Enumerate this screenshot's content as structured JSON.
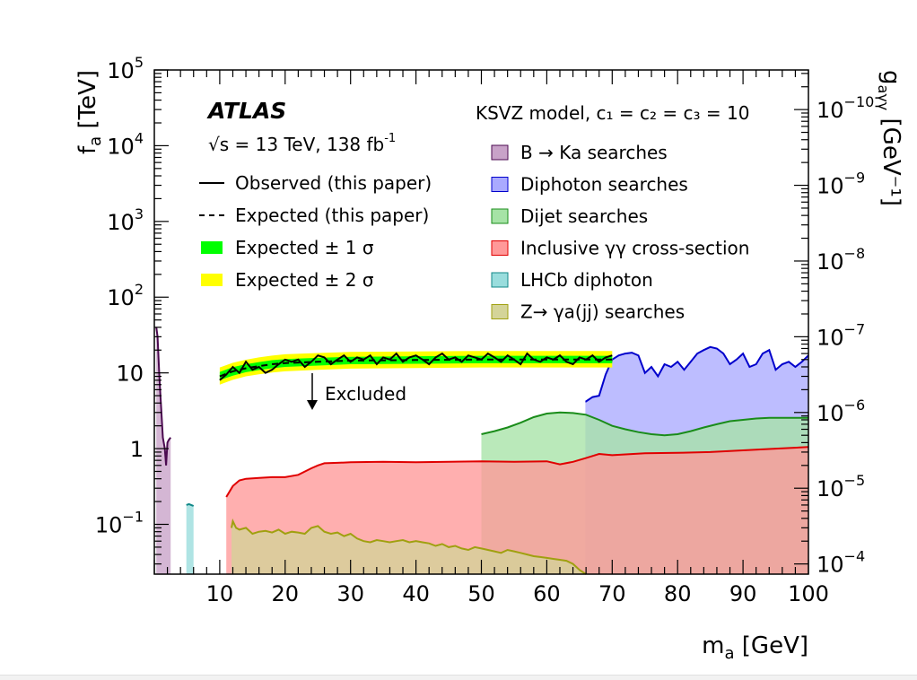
{
  "chart_data": {
    "type": "area",
    "title": "",
    "experiment": "ATLAS",
    "energy_label": "√s = 13 TeV, 138 fb",
    "energy_sup": "-1",
    "model_label": "KSVZ model, c₁ = c₂ = c₃ = 10",
    "xlabel_main": "m",
    "xlabel_sub": "a",
    "xlabel_unit": " [GeV]",
    "ylabel_main": "f",
    "ylabel_sub": "a",
    "ylabel_unit": " [TeV]",
    "y2label_main": "g",
    "y2label_sub": "aγγ",
    "y2label_unit": " [GeV⁻¹]",
    "xlim": [
      0,
      100
    ],
    "ylim": [
      0.022,
      100000
    ],
    "yscale": "log",
    "xticks": [
      10,
      20,
      30,
      40,
      50,
      60,
      70,
      80,
      90,
      100
    ],
    "yticks": [
      {
        "value": 0.1,
        "base": "10",
        "exp": "−1"
      },
      {
        "value": 1,
        "base": "1",
        "exp": ""
      },
      {
        "value": 10,
        "base": "10",
        "exp": ""
      },
      {
        "value": 100,
        "base": "10",
        "exp": "2"
      },
      {
        "value": 1000,
        "base": "10",
        "exp": "3"
      },
      {
        "value": 10000,
        "base": "10",
        "exp": "4"
      },
      {
        "value": 100000,
        "base": "10",
        "exp": "5"
      }
    ],
    "y2ticks": [
      {
        "fa": 0.03,
        "exp": "−4"
      },
      {
        "fa": 0.3,
        "exp": "−5"
      },
      {
        "fa": 3,
        "exp": "−6"
      },
      {
        "fa": 30,
        "exp": "−7"
      },
      {
        "fa": 300,
        "exp": "−8"
      },
      {
        "fa": 3000,
        "exp": "−9"
      },
      {
        "fa": 30000,
        "exp": "−10"
      }
    ],
    "excluded_label": "Excluded",
    "legend_left": [
      {
        "label": "Observed (this paper)",
        "style": "solid"
      },
      {
        "label": "Expected (this paper)",
        "style": "dashed"
      },
      {
        "label": "Expected ± 1 σ",
        "color": "#00ff00"
      },
      {
        "label": "Expected ± 2 σ",
        "color": "#ffff00"
      }
    ],
    "series": [
      {
        "name": "B → Ka searches",
        "color": "#c8a2c8",
        "line": "#4b0a50",
        "x": [
          0.3,
          0.5,
          0.8,
          1.0,
          1.3,
          1.6,
          1.8,
          2.0,
          2.2,
          2.5
        ],
        "y": [
          40,
          30,
          8,
          4,
          1.4,
          1.0,
          0.6,
          1.2,
          1.3,
          1.4
        ]
      },
      {
        "name": "Diphoton searches",
        "color": "#aaaaff",
        "line": "#0000cc",
        "x": [
          65.9,
          66,
          67,
          68,
          69,
          70,
          71,
          72,
          73,
          74,
          75,
          76,
          77,
          78,
          79,
          80,
          81,
          82,
          83,
          84,
          85,
          86,
          87,
          88,
          89,
          90,
          91,
          92,
          93,
          94,
          95,
          96,
          97,
          98,
          99,
          100
        ],
        "y": [
          4.2,
          4.2,
          4.8,
          5.0,
          9.5,
          15,
          17,
          18,
          18.5,
          17,
          10,
          12,
          9,
          13,
          12,
          14,
          11,
          14,
          18,
          20,
          22,
          21,
          18,
          13,
          15,
          18,
          12,
          13,
          18,
          20,
          11,
          13,
          14,
          12,
          14,
          17
        ]
      },
      {
        "name": "Dijet searches",
        "color": "#a6e3a6",
        "line": "#1a8c1a",
        "x": [
          50,
          52,
          54,
          56,
          58,
          60,
          62,
          64,
          66,
          68,
          70,
          72,
          74,
          76,
          78,
          80,
          82,
          84,
          86,
          88,
          90,
          92,
          94,
          96,
          98,
          100
        ],
        "y": [
          1.55,
          1.7,
          1.9,
          2.2,
          2.6,
          2.9,
          3.0,
          2.95,
          2.8,
          2.4,
          2.0,
          1.8,
          1.65,
          1.55,
          1.5,
          1.55,
          1.7,
          1.9,
          2.1,
          2.3,
          2.4,
          2.5,
          2.55,
          2.55,
          2.55,
          2.55
        ]
      },
      {
        "name": "Inclusive γγ cross-section",
        "color": "#ff9999",
        "line": "#e00000",
        "x": [
          11,
          12,
          13,
          14,
          16,
          18,
          20,
          22,
          24,
          25,
          26,
          28,
          30,
          35,
          40,
          45,
          50,
          55,
          60,
          62,
          64,
          66,
          68,
          70,
          75,
          80,
          85,
          90,
          95,
          100
        ],
        "y": [
          0.23,
          0.32,
          0.38,
          0.4,
          0.41,
          0.42,
          0.42,
          0.45,
          0.55,
          0.6,
          0.64,
          0.65,
          0.66,
          0.67,
          0.66,
          0.67,
          0.68,
          0.67,
          0.68,
          0.62,
          0.67,
          0.75,
          0.85,
          0.82,
          0.87,
          0.88,
          0.9,
          0.95,
          1.0,
          1.05
        ]
      },
      {
        "name": "LHCb diphoton",
        "color": "#99dddd",
        "line": "#118888",
        "x": [
          4.9,
          5.3,
          5.8,
          6.0
        ],
        "y": [
          0.18,
          0.185,
          0.178,
          0.175
        ]
      },
      {
        "name": "Z→ γa(jj) searches",
        "color": "#d4d499",
        "line": "#a0a010",
        "x": [
          11.8,
          12,
          12.5,
          13,
          14,
          15,
          16,
          17,
          18,
          19,
          20,
          21,
          22,
          23,
          24,
          25,
          26,
          27,
          28,
          29,
          30,
          31,
          32,
          33,
          34,
          35,
          36,
          37,
          38,
          39,
          40,
          41,
          42,
          43,
          44,
          45,
          46,
          47,
          48,
          49,
          50,
          51,
          52,
          53,
          54,
          55,
          56,
          57,
          58,
          59,
          60,
          61,
          62,
          63,
          64,
          65,
          66
        ],
        "y": [
          0.09,
          0.11,
          0.09,
          0.085,
          0.09,
          0.075,
          0.08,
          0.082,
          0.078,
          0.085,
          0.075,
          0.08,
          0.078,
          0.075,
          0.09,
          0.095,
          0.08,
          0.075,
          0.078,
          0.07,
          0.075,
          0.065,
          0.06,
          0.058,
          0.062,
          0.06,
          0.058,
          0.06,
          0.062,
          0.058,
          0.06,
          0.058,
          0.056,
          0.052,
          0.055,
          0.05,
          0.052,
          0.048,
          0.046,
          0.05,
          0.048,
          0.046,
          0.044,
          0.042,
          0.046,
          0.044,
          0.042,
          0.04,
          0.038,
          0.037,
          0.036,
          0.035,
          0.034,
          0.033,
          0.03,
          0.025,
          0.022
        ]
      }
    ],
    "observed": {
      "x": [
        10,
        11,
        12,
        13,
        14,
        15,
        16,
        17,
        18,
        19,
        20,
        21,
        22,
        23,
        24,
        25,
        26,
        27,
        28,
        29,
        30,
        31,
        32,
        33,
        34,
        35,
        36,
        37,
        38,
        39,
        40,
        41,
        42,
        43,
        44,
        45,
        46,
        47,
        48,
        49,
        50,
        51,
        52,
        53,
        54,
        55,
        56,
        57,
        58,
        59,
        60,
        61,
        62,
        63,
        64,
        65,
        66,
        67,
        68,
        69,
        70
      ],
      "y": [
        8,
        9.5,
        12,
        10,
        14,
        11,
        12,
        10,
        11,
        13,
        15,
        14,
        15,
        12,
        14,
        17,
        16,
        13,
        15,
        17,
        14,
        16,
        15,
        17,
        13,
        16,
        15,
        18,
        14,
        16,
        17,
        15,
        13,
        16,
        18,
        15,
        16,
        14,
        17,
        16,
        15,
        18,
        16,
        14,
        17,
        15,
        13,
        18,
        15,
        14,
        16,
        15,
        17,
        14,
        13,
        16,
        15,
        17,
        14,
        16,
        17
      ]
    },
    "expected": {
      "x": [
        10,
        12,
        14,
        16,
        18,
        20,
        25,
        30,
        40,
        50,
        60,
        70
      ],
      "y": [
        9,
        10.5,
        11.5,
        12.3,
        13,
        13.5,
        14,
        14.5,
        14.8,
        15,
        15,
        15
      ]
    },
    "band1": {
      "x": [
        10,
        12,
        14,
        16,
        18,
        20,
        25,
        30,
        40,
        50,
        60,
        70
      ],
      "lower": [
        8,
        9.2,
        10.2,
        10.9,
        11.5,
        12,
        12.5,
        13,
        13.2,
        13.4,
        13.4,
        13.4
      ],
      "upper": [
        10.3,
        11.9,
        13,
        13.9,
        14.7,
        15.2,
        15.8,
        16.3,
        16.6,
        16.8,
        16.8,
        16.8
      ]
    },
    "band2": {
      "x": [
        10,
        12,
        14,
        16,
        18,
        20,
        25,
        30,
        40,
        50,
        60,
        70
      ],
      "lower": [
        7,
        8.1,
        9,
        9.6,
        10.1,
        10.5,
        11,
        11.4,
        11.6,
        11.8,
        11.8,
        11.8
      ],
      "upper": [
        11.8,
        13.6,
        14.9,
        16,
        16.9,
        17.6,
        18.3,
        18.9,
        19.2,
        19.5,
        19.5,
        19.5
      ]
    }
  }
}
